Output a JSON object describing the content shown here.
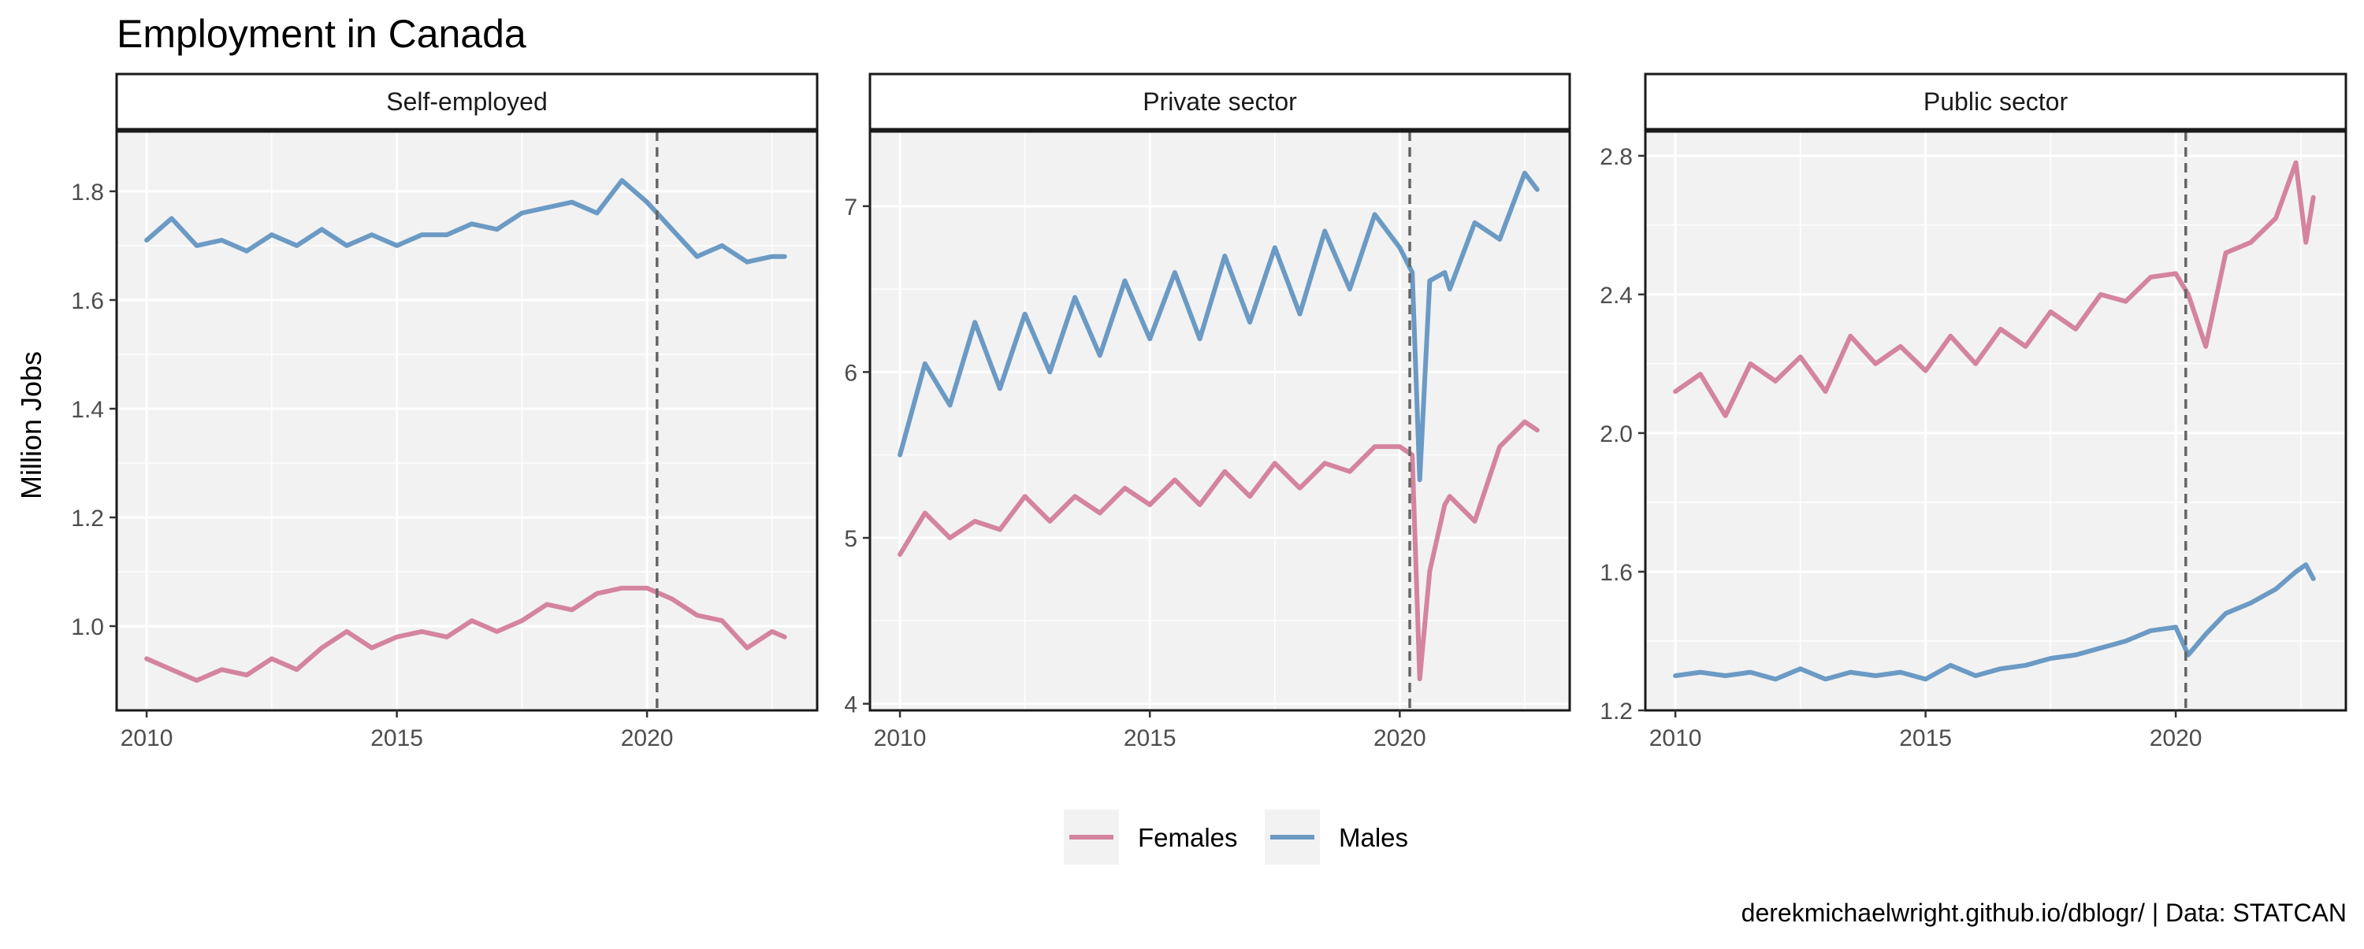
{
  "chart_data": {
    "type": "line",
    "title": "Employment in Canada",
    "ylabel": "Million Jobs",
    "caption": "derekmichaelwright.github.io/dblogr/ | Data: STATCAN",
    "legend": {
      "position": "bottom"
    },
    "grid": true,
    "reference_line_x": 2020.2,
    "series_colors": {
      "Females": "#d4849e",
      "Males": "#6b9ac4"
    },
    "legend_entries": [
      "Females",
      "Males"
    ],
    "panels": [
      {
        "facet": "Self-employed",
        "xlim": [
          2009.4,
          2023.4
        ],
        "xticks": [
          2010,
          2015,
          2020
        ],
        "ylim": [
          0.845,
          1.91
        ],
        "yticks": [
          1.0,
          1.2,
          1.4,
          1.6,
          1.8
        ],
        "ytick_labels": [
          "1.0",
          "1.2",
          "1.4",
          "1.6",
          "1.8"
        ],
        "series": [
          {
            "name": "Females",
            "x": [
              2010,
              2010.5,
              2011,
              2011.5,
              2012,
              2012.5,
              2013,
              2013.5,
              2014,
              2014.5,
              2015,
              2015.5,
              2016,
              2016.5,
              2017,
              2017.5,
              2018,
              2018.5,
              2019,
              2019.5,
              2020,
              2020.5,
              2021,
              2021.5,
              2022,
              2022.5,
              2022.75
            ],
            "y": [
              0.94,
              0.92,
              0.9,
              0.92,
              0.91,
              0.94,
              0.92,
              0.96,
              0.99,
              0.96,
              0.98,
              0.99,
              0.98,
              1.01,
              0.99,
              1.01,
              1.04,
              1.03,
              1.06,
              1.07,
              1.07,
              1.05,
              1.02,
              1.01,
              0.96,
              0.99,
              0.98
            ]
          },
          {
            "name": "Males",
            "x": [
              2010,
              2010.5,
              2011,
              2011.5,
              2012,
              2012.5,
              2013,
              2013.5,
              2014,
              2014.5,
              2015,
              2015.5,
              2016,
              2016.5,
              2017,
              2017.5,
              2018,
              2018.5,
              2019,
              2019.5,
              2020,
              2020.5,
              2021,
              2021.5,
              2022,
              2022.5,
              2022.75
            ],
            "y": [
              1.71,
              1.75,
              1.7,
              1.71,
              1.69,
              1.72,
              1.7,
              1.73,
              1.7,
              1.72,
              1.7,
              1.72,
              1.72,
              1.74,
              1.73,
              1.76,
              1.77,
              1.78,
              1.76,
              1.82,
              1.78,
              1.73,
              1.68,
              1.7,
              1.67,
              1.68,
              1.68
            ]
          }
        ]
      },
      {
        "facet": "Private sector",
        "xlim": [
          2009.4,
          2023.4
        ],
        "xticks": [
          2010,
          2015,
          2020
        ],
        "ylim": [
          3.96,
          7.45
        ],
        "yticks": [
          4,
          5,
          6,
          7
        ],
        "ytick_labels": [
          "4",
          "5",
          "6",
          "7"
        ],
        "series": [
          {
            "name": "Females",
            "x": [
              2010,
              2010.5,
              2011,
              2011.5,
              2012,
              2012.5,
              2013,
              2013.5,
              2014,
              2014.5,
              2015,
              2015.5,
              2016,
              2016.5,
              2017,
              2017.5,
              2018,
              2018.5,
              2019,
              2019.5,
              2020,
              2020.25,
              2020.4,
              2020.6,
              2020.9,
              2021,
              2021.5,
              2022,
              2022.5,
              2022.75
            ],
            "y": [
              4.9,
              5.15,
              5.0,
              5.1,
              5.05,
              5.25,
              5.1,
              5.25,
              5.15,
              5.3,
              5.2,
              5.35,
              5.2,
              5.4,
              5.25,
              5.45,
              5.3,
              5.45,
              5.4,
              5.55,
              5.55,
              5.5,
              4.15,
              4.8,
              5.2,
              5.25,
              5.1,
              5.55,
              5.7,
              5.65
            ]
          },
          {
            "name": "Males",
            "x": [
              2010,
              2010.5,
              2011,
              2011.5,
              2012,
              2012.5,
              2013,
              2013.5,
              2014,
              2014.5,
              2015,
              2015.5,
              2016,
              2016.5,
              2017,
              2017.5,
              2018,
              2018.5,
              2019,
              2019.5,
              2020,
              2020.25,
              2020.4,
              2020.6,
              2020.9,
              2021,
              2021.5,
              2022,
              2022.5,
              2022.75
            ],
            "y": [
              5.5,
              6.05,
              5.8,
              6.3,
              5.9,
              6.35,
              6.0,
              6.45,
              6.1,
              6.55,
              6.2,
              6.6,
              6.2,
              6.7,
              6.3,
              6.75,
              6.35,
              6.85,
              6.5,
              6.95,
              6.75,
              6.6,
              5.35,
              6.55,
              6.6,
              6.5,
              6.9,
              6.8,
              7.2,
              7.1
            ]
          }
        ]
      },
      {
        "facet": "Public sector",
        "xlim": [
          2009.4,
          2023.4
        ],
        "xticks": [
          2010,
          2015,
          2020
        ],
        "ylim": [
          1.2,
          2.87
        ],
        "yticks": [
          1.2,
          1.6,
          2.0,
          2.4,
          2.8
        ],
        "ytick_labels": [
          "1.2",
          "1.6",
          "2.0",
          "2.4",
          "2.8"
        ],
        "series": [
          {
            "name": "Females",
            "x": [
              2010,
              2010.5,
              2011,
              2011.5,
              2012,
              2012.5,
              2013,
              2013.5,
              2014,
              2014.5,
              2015,
              2015.5,
              2016,
              2016.5,
              2017,
              2017.5,
              2018,
              2018.5,
              2019,
              2019.5,
              2020,
              2020.25,
              2020.6,
              2021,
              2021.5,
              2022,
              2022.4,
              2022.6,
              2022.75
            ],
            "y": [
              2.12,
              2.17,
              2.05,
              2.2,
              2.15,
              2.22,
              2.12,
              2.28,
              2.2,
              2.25,
              2.18,
              2.28,
              2.2,
              2.3,
              2.25,
              2.35,
              2.3,
              2.4,
              2.38,
              2.45,
              2.46,
              2.4,
              2.25,
              2.52,
              2.55,
              2.62,
              2.78,
              2.55,
              2.68
            ]
          },
          {
            "name": "Males",
            "x": [
              2010,
              2010.5,
              2011,
              2011.5,
              2012,
              2012.5,
              2013,
              2013.5,
              2014,
              2014.5,
              2015,
              2015.5,
              2016,
              2016.5,
              2017,
              2017.5,
              2018,
              2018.5,
              2019,
              2019.5,
              2020,
              2020.25,
              2020.6,
              2021,
              2021.5,
              2022,
              2022.4,
              2022.6,
              2022.75
            ],
            "y": [
              1.3,
              1.31,
              1.3,
              1.31,
              1.29,
              1.32,
              1.29,
              1.31,
              1.3,
              1.31,
              1.29,
              1.33,
              1.3,
              1.32,
              1.33,
              1.35,
              1.36,
              1.38,
              1.4,
              1.43,
              1.44,
              1.36,
              1.42,
              1.48,
              1.51,
              1.55,
              1.6,
              1.62,
              1.58
            ]
          }
        ]
      }
    ]
  }
}
